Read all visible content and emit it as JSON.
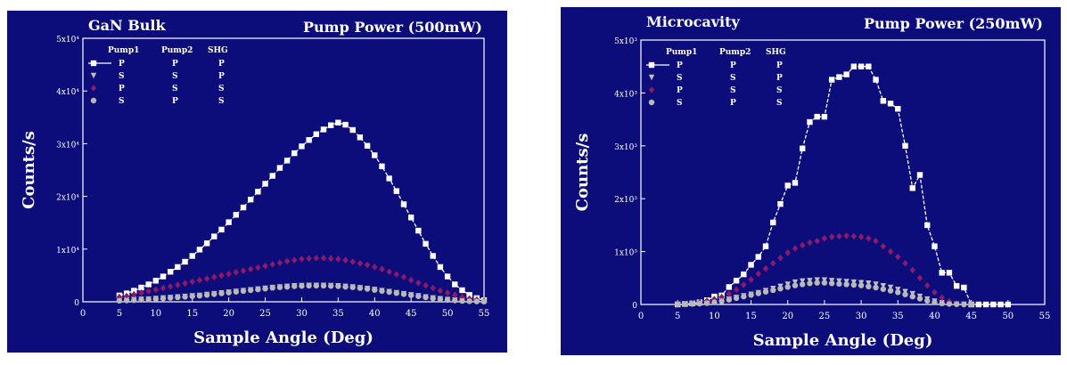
{
  "chart_data": [
    {
      "type": "scatter",
      "title": "GaN Bulk",
      "subtitle": "Pump Power (500mW)",
      "xlabel": "Sample Angle (Deg)",
      "ylabel": "Counts/s",
      "xlim": [
        0,
        55
      ],
      "ylim": [
        0,
        50000
      ],
      "xticks": [
        "0",
        "5",
        "10",
        "15",
        "20",
        "25",
        "30",
        "35",
        "40",
        "45",
        "50",
        "55"
      ],
      "yticks": [
        "0",
        "1x10⁴",
        "2x10⁴",
        "3x10⁴",
        "4x10⁴",
        "5x10⁴"
      ],
      "legend": {
        "headers": [
          "Pump1",
          "Pump2",
          "SHG"
        ],
        "position": "top-left",
        "rows": [
          [
            "P",
            "P",
            "P"
          ],
          [
            "S",
            "S",
            "P"
          ],
          [
            "P",
            "S",
            "S"
          ],
          [
            "S",
            "P",
            "S"
          ]
        ]
      },
      "series": [
        {
          "color": "#ffffff",
          "marker": "square",
          "line": true,
          "x": [
            5,
            6,
            7,
            8,
            9,
            10,
            11,
            12,
            13,
            14,
            15,
            16,
            17,
            18,
            19,
            20,
            21,
            22,
            23,
            24,
            25,
            26,
            27,
            28,
            29,
            30,
            31,
            32,
            33,
            34,
            35,
            36,
            37,
            38,
            39,
            40,
            41,
            42,
            43,
            44,
            45,
            46,
            47,
            48,
            49,
            50,
            51,
            52,
            53,
            54,
            55
          ],
          "y": [
            1200,
            1600,
            2100,
            2700,
            3300,
            4000,
            4800,
            5700,
            6600,
            7600,
            8700,
            9900,
            11100,
            12400,
            13700,
            15100,
            16500,
            17900,
            19400,
            20900,
            22400,
            23900,
            25400,
            26800,
            28200,
            29500,
            30700,
            31800,
            32700,
            33500,
            34000,
            33600,
            32600,
            31200,
            29600,
            27800,
            25700,
            23400,
            21000,
            18500,
            16000,
            13500,
            11000,
            8700,
            6600,
            4800,
            3300,
            2200,
            1300,
            700,
            300
          ]
        },
        {
          "color": "#bfbfbf",
          "marker": "triangle",
          "line": false,
          "x": [
            5,
            6,
            7,
            8,
            9,
            10,
            11,
            12,
            13,
            14,
            15,
            16,
            17,
            18,
            19,
            20,
            21,
            22,
            23,
            24,
            25,
            26,
            27,
            28,
            29,
            30,
            31,
            32,
            33,
            34,
            35,
            36,
            37,
            38,
            39,
            40,
            41,
            42,
            43,
            44,
            45,
            46,
            47,
            48,
            49,
            50,
            51,
            52,
            53,
            54,
            55
          ],
          "y": [
            300,
            350,
            400,
            450,
            500,
            600,
            700,
            800,
            900,
            1000,
            1100,
            1200,
            1350,
            1500,
            1650,
            1800,
            1950,
            2100,
            2250,
            2400,
            2550,
            2700,
            2800,
            2900,
            3000,
            3050,
            3100,
            3100,
            3100,
            3050,
            3000,
            2900,
            2800,
            2650,
            2500,
            2300,
            2100,
            1900,
            1700,
            1500,
            1300,
            1100,
            900,
            700,
            550,
            400,
            300,
            200,
            150,
            100,
            50
          ]
        },
        {
          "color": "#8b1a6b",
          "marker": "diamond",
          "line": false,
          "x": [
            5,
            6,
            7,
            8,
            9,
            10,
            11,
            12,
            13,
            14,
            15,
            16,
            17,
            18,
            19,
            20,
            21,
            22,
            23,
            24,
            25,
            26,
            27,
            28,
            29,
            30,
            31,
            32,
            33,
            34,
            35,
            36,
            37,
            38,
            39,
            40,
            41,
            42,
            43,
            44,
            45,
            46,
            47,
            48,
            49,
            50,
            51,
            52,
            53,
            54,
            55
          ],
          "y": [
            900,
            1100,
            1400,
            1700,
            2000,
            2300,
            2600,
            2900,
            3200,
            3500,
            3800,
            4100,
            4400,
            4700,
            5000,
            5300,
            5600,
            5900,
            6200,
            6500,
            6800,
            7100,
            7400,
            7700,
            7900,
            8100,
            8200,
            8300,
            8300,
            8200,
            8100,
            7900,
            7600,
            7300,
            7000,
            6600,
            6200,
            5700,
            5200,
            4700,
            4100,
            3600,
            3100,
            2600,
            2100,
            1700,
            1300,
            900,
            600,
            400,
            200
          ]
        },
        {
          "color": "#b8b8b8",
          "marker": "circle",
          "line": false,
          "x": [
            5,
            6,
            7,
            8,
            9,
            10,
            11,
            12,
            13,
            14,
            15,
            16,
            17,
            18,
            19,
            20,
            21,
            22,
            23,
            24,
            25,
            26,
            27,
            28,
            29,
            30,
            31,
            32,
            33,
            34,
            35,
            36,
            37,
            38,
            39,
            40,
            41,
            42,
            43,
            44,
            45,
            46,
            47,
            48,
            49,
            50,
            51,
            52,
            53,
            54,
            55
          ],
          "y": [
            200,
            250,
            300,
            380,
            450,
            550,
            650,
            750,
            850,
            950,
            1050,
            1150,
            1300,
            1450,
            1600,
            1750,
            1900,
            2050,
            2200,
            2350,
            2500,
            2650,
            2750,
            2850,
            2950,
            3000,
            3050,
            3050,
            3050,
            3000,
            2950,
            2850,
            2750,
            2600,
            2450,
            2250,
            2050,
            1850,
            1650,
            1450,
            1250,
            1050,
            850,
            650,
            500,
            350,
            250,
            150,
            100,
            60,
            30
          ]
        }
      ]
    },
    {
      "type": "scatter",
      "title": "Microcavity",
      "subtitle": "Pump Power (250mW)",
      "xlabel": "Sample Angle (Deg)",
      "ylabel": "Counts/s",
      "xlim": [
        0,
        55
      ],
      "ylim": [
        0,
        5000
      ],
      "xticks": [
        "0",
        "5",
        "10",
        "15",
        "20",
        "25",
        "30",
        "35",
        "40",
        "45",
        "50",
        "55"
      ],
      "yticks": [
        "0",
        "1x10³",
        "2x10³",
        "3x10³",
        "4x10³",
        "5x10³"
      ],
      "legend": {
        "headers": [
          "Pump1",
          "Pump2",
          "SHG"
        ],
        "position": "top-left",
        "rows": [
          [
            "P",
            "P",
            "P"
          ],
          [
            "S",
            "S",
            "P"
          ],
          [
            "P",
            "S",
            "S"
          ],
          [
            "S",
            "P",
            "S"
          ]
        ]
      },
      "series": [
        {
          "color": "#ffffff",
          "marker": "square",
          "line": true,
          "x": [
            5,
            6,
            7,
            8,
            9,
            10,
            11,
            12,
            13,
            14,
            15,
            16,
            17,
            18,
            19,
            20,
            21,
            22,
            23,
            24,
            25,
            26,
            27,
            28,
            29,
            30,
            31,
            32,
            33,
            34,
            35,
            36,
            37,
            38,
            39,
            40,
            41,
            42,
            43,
            44,
            45,
            46,
            47,
            48,
            49,
            50
          ],
          "y": [
            0,
            10,
            20,
            40,
            80,
            150,
            170,
            330,
            450,
            570,
            750,
            900,
            1100,
            1550,
            1900,
            2250,
            2300,
            2950,
            3450,
            3550,
            3550,
            4250,
            4300,
            4350,
            4500,
            4500,
            4500,
            4250,
            3850,
            3800,
            3700,
            3000,
            2200,
            2450,
            1500,
            1100,
            600,
            600,
            350,
            320,
            0,
            0,
            0,
            0,
            0,
            0
          ]
        },
        {
          "color": "#bfbfbf",
          "marker": "triangle",
          "line": false,
          "x": [
            5,
            6,
            7,
            8,
            9,
            10,
            11,
            12,
            13,
            14,
            15,
            16,
            17,
            18,
            19,
            20,
            21,
            22,
            23,
            24,
            25,
            26,
            27,
            28,
            29,
            30,
            31,
            32,
            33,
            34,
            35,
            36,
            37,
            38,
            39,
            40,
            41,
            42,
            43,
            44,
            45
          ],
          "y": [
            0,
            5,
            10,
            20,
            30,
            50,
            70,
            100,
            130,
            160,
            190,
            220,
            260,
            300,
            340,
            380,
            420,
            440,
            450,
            460,
            460,
            450,
            440,
            430,
            420,
            410,
            400,
            380,
            350,
            320,
            280,
            240,
            200,
            150,
            100,
            60,
            30,
            15,
            5,
            0,
            0
          ]
        },
        {
          "color": "#8b1a6b",
          "marker": "diamond",
          "line": false,
          "x": [
            5,
            6,
            7,
            8,
            9,
            10,
            11,
            12,
            13,
            14,
            15,
            16,
            17,
            18,
            19,
            20,
            21,
            22,
            23,
            24,
            25,
            26,
            27,
            28,
            29,
            30,
            31,
            32,
            33,
            34,
            35,
            36,
            37,
            38,
            39,
            40,
            41,
            42,
            43,
            44,
            45
          ],
          "y": [
            0,
            10,
            20,
            40,
            70,
            100,
            140,
            200,
            280,
            370,
            470,
            580,
            680,
            780,
            880,
            980,
            1060,
            1120,
            1170,
            1200,
            1250,
            1280,
            1290,
            1300,
            1290,
            1280,
            1250,
            1200,
            1100,
            1000,
            900,
            780,
            650,
            500,
            360,
            230,
            130,
            60,
            20,
            5,
            0
          ]
        },
        {
          "color": "#b8b8b8",
          "marker": "circle",
          "line": false,
          "x": [
            5,
            6,
            7,
            8,
            9,
            10,
            11,
            12,
            13,
            14,
            15,
            16,
            17,
            18,
            19,
            20,
            21,
            22,
            23,
            24,
            25,
            26,
            27,
            28,
            29,
            30,
            31,
            32,
            33,
            34,
            35,
            36,
            37,
            38,
            39,
            40,
            41,
            42,
            43,
            44,
            45
          ],
          "y": [
            0,
            5,
            10,
            15,
            25,
            40,
            60,
            90,
            120,
            150,
            180,
            210,
            240,
            270,
            300,
            330,
            360,
            380,
            400,
            410,
            410,
            400,
            390,
            380,
            370,
            360,
            340,
            320,
            290,
            260,
            230,
            190,
            150,
            110,
            70,
            40,
            20,
            10,
            5,
            0,
            0
          ]
        }
      ]
    }
  ]
}
